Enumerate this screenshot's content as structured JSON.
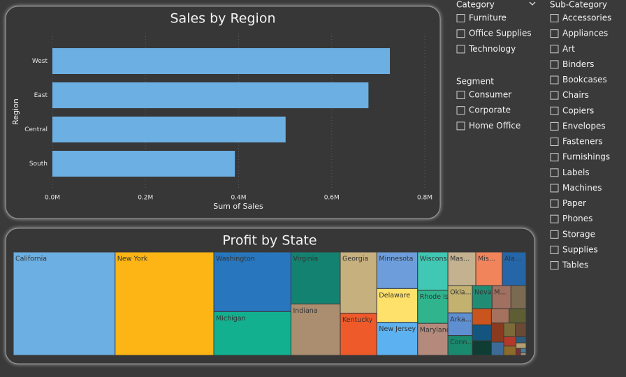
{
  "chart_data": [
    {
      "type": "bar",
      "orientation": "horizontal",
      "title": "Sales by Region",
      "x_label": "Sum of Sales",
      "y_label": "Region",
      "categories": [
        "West",
        "East",
        "Central",
        "South"
      ],
      "values": [
        725000,
        679000,
        501000,
        392000
      ],
      "color": "#6cafe2",
      "xlim": [
        0,
        800000
      ],
      "xticks": [
        {
          "value": 0,
          "label": "0.0M"
        },
        {
          "value": 200000,
          "label": "0.2M"
        },
        {
          "value": 400000,
          "label": "0.4M"
        },
        {
          "value": 600000,
          "label": "0.6M"
        },
        {
          "value": 800000,
          "label": "0.8M"
        }
      ],
      "grid": true
    },
    {
      "type": "treemap",
      "title": "Profit by State",
      "categories": [
        "California",
        "New York",
        "Washington",
        "Michigan",
        "Virginia",
        "Indiana",
        "Georgia",
        "Kentucky",
        "Minnesota",
        "Delaware",
        "New Jersey",
        "Wisconsin",
        "Rhode Isl...",
        "Maryland",
        "Mas...",
        "Mis...",
        "Ala...",
        "Okla...",
        "Arka...",
        "Conn...",
        "Nevada",
        "M...",
        null,
        null,
        null,
        null,
        null,
        null,
        null,
        null,
        null,
        null,
        null,
        null,
        null,
        null,
        null,
        null,
        null
      ],
      "values": [
        76381,
        74039,
        33403,
        24463,
        18598,
        18383,
        16250,
        11200,
        10823,
        9977,
        9773,
        8402,
        7286,
        7031,
        6786,
        6436,
        5787,
        4854,
        4009,
        3511,
        3317,
        3172,
        2547,
        2245,
        2196,
        2037,
        1833,
        1769,
        1707,
        1184,
        1157,
        1060,
        836,
        827,
        454,
        395,
        230,
        186,
        100
      ],
      "colors": [
        "#6cafe2",
        "#fcb514",
        "#2776be",
        "#12b08f",
        "#138270",
        "#aa8e6f",
        "#c6b07e",
        "#ef5a2a",
        "#6d9edb",
        "#fde16a",
        "#5cb1f0",
        "#40c8b4",
        "#30b48e",
        "#b48a7d",
        "#c3b18f",
        "#f2845b",
        "#2466a8",
        "#c3b170",
        "#5e8fd0",
        "#1a8a6e",
        "#218c74",
        "#a07060",
        "#7b6a52",
        "#c9541e",
        "#14557f",
        "#0f3d34",
        "#a4725f",
        "#5e5e34",
        "#8a3a1e",
        "#3d6a96",
        "#7c6b3a",
        "#6a4a35",
        "#b33a2a",
        "#8c6a2a",
        "#2e5c7a",
        "#b3a070",
        "#7a3030",
        "#4a7a9a",
        "#aa8e6f"
      ]
    }
  ],
  "slicers": {
    "category": {
      "title": "Category",
      "options": [
        "Furniture",
        "Office Supplies",
        "Technology"
      ]
    },
    "segment": {
      "title": "Segment",
      "options": [
        "Consumer",
        "Corporate",
        "Home Office"
      ]
    },
    "sub_category": {
      "title": "Sub-Category",
      "options": [
        "Accessories",
        "Appliances",
        "Art",
        "Binders",
        "Bookcases",
        "Chairs",
        "Copiers",
        "Envelopes",
        "Fasteners",
        "Furnishings",
        "Labels",
        "Machines",
        "Paper",
        "Phones",
        "Storage",
        "Supplies",
        "Tables"
      ]
    }
  }
}
